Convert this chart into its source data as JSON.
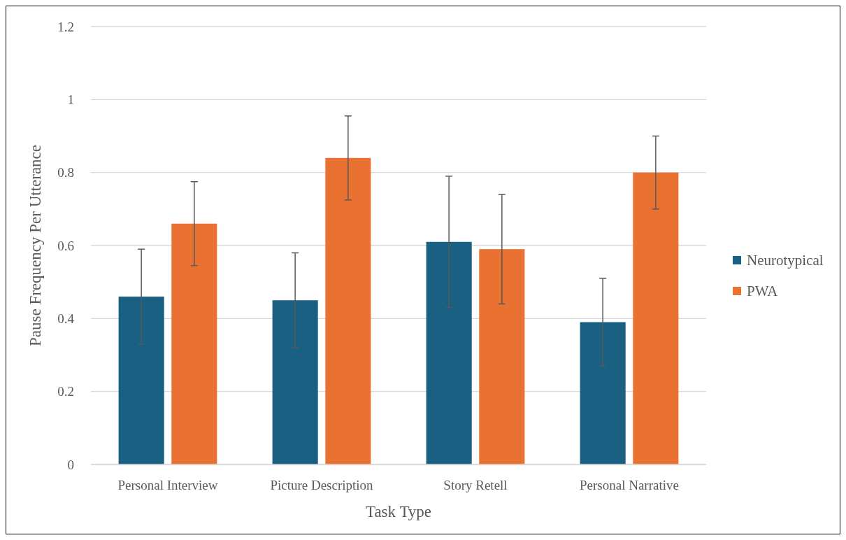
{
  "chart_data": {
    "type": "bar",
    "xlabel": "Task Type",
    "ylabel": "Pause Frequency Per Utterance",
    "categories": [
      "Personal Interview",
      "Picture Description",
      "Story Retell",
      "Personal Narrative"
    ],
    "series": [
      {
        "name": "Neurotypical",
        "color": "#196083",
        "values": [
          0.46,
          0.45,
          0.61,
          0.39
        ],
        "errors": [
          0.13,
          0.13,
          0.18,
          0.12
        ]
      },
      {
        "name": "PWA",
        "color": "#e97132",
        "values": [
          0.66,
          0.84,
          0.59,
          0.8
        ],
        "errors": [
          0.115,
          0.115,
          0.15,
          0.1
        ]
      }
    ],
    "ylim": [
      0,
      1.2
    ],
    "yticks": [
      {
        "value": 0,
        "label": "0"
      },
      {
        "value": 0.2,
        "label": "0.2"
      },
      {
        "value": 0.4,
        "label": "0.4"
      },
      {
        "value": 0.6,
        "label": "0.6"
      },
      {
        "value": 0.8,
        "label": "0.8"
      },
      {
        "value": 1,
        "label": "1"
      },
      {
        "value": 1.2,
        "label": "1.2"
      }
    ],
    "grid": "y",
    "legend": "right"
  }
}
